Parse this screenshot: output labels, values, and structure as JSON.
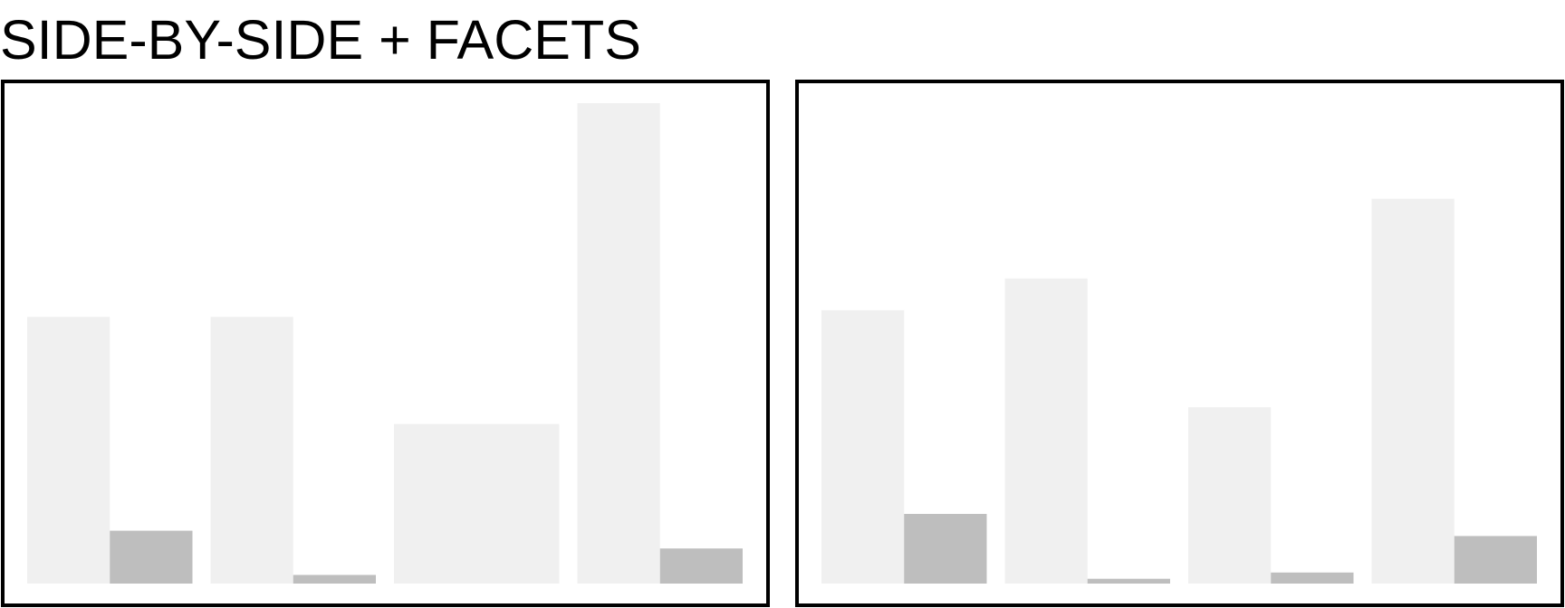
{
  "title": "SIDE-BY-SIDE + FACETS",
  "colors": {
    "series_light": "#f0f0f0",
    "series_dark": "#bebebe",
    "frame": "#000000",
    "background": "#ffffff"
  },
  "chart_data": [
    {
      "type": "bar",
      "layout": "side-by-side",
      "title": "",
      "xlabel": "",
      "ylabel": "",
      "ylim": [
        0,
        100
      ],
      "grid": false,
      "legend": "none",
      "categories": [
        "",
        "",
        "",
        ""
      ],
      "series": [
        {
          "color": "#f0f0f0",
          "values": [
            55.5,
            55.5,
            33.2,
            100
          ]
        },
        {
          "color": "#bebebe",
          "values": [
            11.0,
            1.8,
            null,
            7.3
          ]
        }
      ]
    },
    {
      "type": "bar",
      "layout": "side-by-side",
      "title": "",
      "xlabel": "",
      "ylabel": "",
      "ylim": [
        0,
        100
      ],
      "grid": false,
      "legend": "none",
      "categories": [
        "",
        "",
        "",
        ""
      ],
      "series": [
        {
          "color": "#f0f0f0",
          "values": [
            56.9,
            63.5,
            36.7,
            80.1
          ]
        },
        {
          "color": "#bebebe",
          "values": [
            14.5,
            1.0,
            2.3,
            9.9
          ]
        }
      ]
    }
  ]
}
